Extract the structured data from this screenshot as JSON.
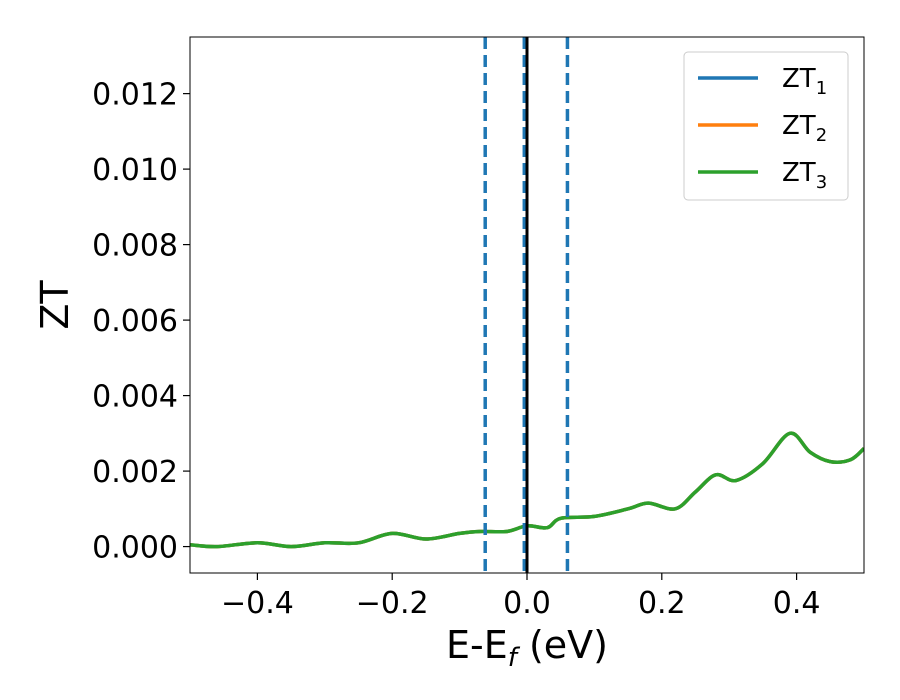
{
  "chart_data": {
    "type": "line",
    "xlabel": "E-E",
    "xlabel_subscript": "f",
    "xlabel_unit": " (eV)",
    "ylabel": "ZT",
    "xlim": [
      -0.5,
      0.5
    ],
    "ylim": [
      -0.0007,
      0.0135
    ],
    "xticks": [
      -0.4,
      -0.2,
      0.0,
      0.2,
      0.4
    ],
    "xtick_labels": [
      "−0.4",
      "−0.2",
      "0.0",
      "0.2",
      "0.4"
    ],
    "yticks": [
      0.0,
      0.002,
      0.004,
      0.006,
      0.008,
      0.01,
      0.012
    ],
    "ytick_labels": [
      "0.000",
      "0.002",
      "0.004",
      "0.006",
      "0.008",
      "0.010",
      "0.012"
    ],
    "grid": false,
    "legend_position": "top-right",
    "series": [
      {
        "name": "ZT",
        "subscript": "1",
        "color": "#1f77b4",
        "x": [
          -0.5,
          -0.46,
          -0.4,
          -0.35,
          -0.3,
          -0.25,
          -0.2,
          -0.15,
          -0.1,
          -0.07,
          -0.03,
          0.0,
          0.03,
          0.05,
          0.1,
          0.15,
          0.18,
          0.22,
          0.25,
          0.28,
          0.31,
          0.35,
          0.39,
          0.42,
          0.45,
          0.48,
          0.5
        ],
        "y": [
          5e-05,
          0.0,
          0.0001,
          0.0,
          0.0001,
          0.0001,
          0.00035,
          0.0002,
          0.00035,
          0.0004,
          0.0004,
          0.00055,
          0.0005,
          0.00075,
          0.0008,
          0.001,
          0.00115,
          0.001,
          0.00145,
          0.0019,
          0.00175,
          0.0022,
          0.003,
          0.0025,
          0.00225,
          0.0023,
          0.0026
        ]
      },
      {
        "name": "ZT",
        "subscript": "2",
        "color": "#ff7f0e",
        "x": [
          -0.5,
          -0.46,
          -0.4,
          -0.35,
          -0.3,
          -0.25,
          -0.2,
          -0.15,
          -0.1,
          -0.07,
          -0.03,
          0.0,
          0.03,
          0.05,
          0.1,
          0.15,
          0.18,
          0.22,
          0.25,
          0.28,
          0.31,
          0.35,
          0.39,
          0.42,
          0.45,
          0.48,
          0.5
        ],
        "y": [
          5e-05,
          0.0,
          0.0001,
          0.0,
          0.0001,
          0.0001,
          0.00035,
          0.0002,
          0.00035,
          0.0004,
          0.0004,
          0.00055,
          0.0005,
          0.00075,
          0.0008,
          0.001,
          0.00115,
          0.001,
          0.00145,
          0.0019,
          0.00175,
          0.0022,
          0.003,
          0.0025,
          0.00225,
          0.0023,
          0.0026
        ]
      },
      {
        "name": "ZT",
        "subscript": "3",
        "color": "#2ca02c",
        "x": [
          -0.5,
          -0.46,
          -0.4,
          -0.35,
          -0.3,
          -0.25,
          -0.2,
          -0.15,
          -0.1,
          -0.07,
          -0.03,
          0.0,
          0.03,
          0.05,
          0.1,
          0.15,
          0.18,
          0.22,
          0.25,
          0.28,
          0.31,
          0.35,
          0.39,
          0.42,
          0.45,
          0.48,
          0.5
        ],
        "y": [
          5e-05,
          0.0,
          0.0001,
          0.0,
          0.0001,
          0.0001,
          0.00035,
          0.0002,
          0.00035,
          0.0004,
          0.0004,
          0.00055,
          0.0005,
          0.00075,
          0.0008,
          0.001,
          0.00115,
          0.001,
          0.00145,
          0.0019,
          0.00175,
          0.0022,
          0.003,
          0.0025,
          0.00225,
          0.0023,
          0.0026
        ]
      }
    ],
    "vlines": [
      {
        "x": -0.062,
        "color": "#1f77b4",
        "style": "dashed"
      },
      {
        "x": -0.004,
        "color": "#1f77b4",
        "style": "dashed"
      },
      {
        "x": 0.06,
        "color": "#1f77b4",
        "style": "dashed"
      },
      {
        "x": 0.0,
        "color": "#000000",
        "style": "solid"
      }
    ]
  }
}
